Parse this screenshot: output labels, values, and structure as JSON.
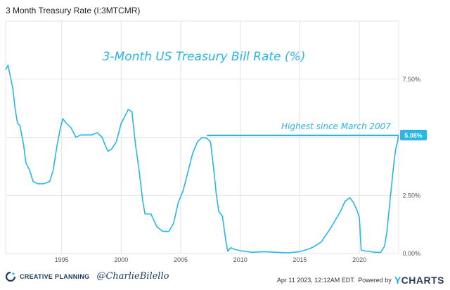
{
  "header": {
    "title": "3 Month Treasury Rate (I:3MTCMR)"
  },
  "footer": {
    "brand": "CREATIVE PLANNING",
    "handle": "@CharlieBilello",
    "timestamp": "Apr 11 2023, 12:12AM EDT.",
    "powered_by": "Powered by",
    "ycharts_y": "Y",
    "ycharts_rest": "CHARTS"
  },
  "colors": {
    "line": "#29b6e6",
    "grid": "#e3e3e3",
    "label_bg": "#29b6e6"
  },
  "chart_data": {
    "type": "line",
    "title": "3-Month US Treasury Bill Rate (%)",
    "xlim": [
      1990.3,
      2023.3
    ],
    "ylim": [
      0,
      10
    ],
    "x_ticks": [
      1995,
      2000,
      2005,
      2010,
      2015,
      2020
    ],
    "x_tick_labels": [
      "1995",
      "2000",
      "2005",
      "2010",
      "2015",
      "2020"
    ],
    "y_ticks": [
      0,
      2.5,
      5,
      7.5
    ],
    "y_tick_labels": [
      "0.00%",
      "2.50%",
      "",
      "7.50%"
    ],
    "annotation": {
      "text": "Highest since March 2007",
      "from_x": 2007.2,
      "to_x": 2023.25,
      "y": 5.08
    },
    "current_value_label": "5.08%",
    "series": [
      {
        "x": [
          1990.3,
          1990.5,
          1990.7,
          1990.9,
          1991.1,
          1991.3,
          1991.5,
          1991.8,
          1992.0,
          1992.3,
          1992.6,
          1993.0,
          1993.5,
          1994.0,
          1994.3,
          1994.6,
          1994.9,
          1995.1,
          1995.4,
          1995.8,
          1996.2,
          1996.6,
          1997.0,
          1997.5,
          1998.0,
          1998.4,
          1998.7,
          1998.9,
          1999.2,
          1999.6,
          2000.0,
          2000.3,
          2000.6,
          2000.9,
          2001.2,
          2001.5,
          2001.8,
          2002.0,
          2002.5,
          2003.0,
          2003.5,
          2004.0,
          2004.4,
          2004.8,
          2005.2,
          2005.6,
          2006.0,
          2006.4,
          2006.8,
          2007.2,
          2007.5,
          2007.8,
          2008.0,
          2008.2,
          2008.5,
          2008.8,
          2008.95,
          2009.2,
          2009.5,
          2010.0,
          2011.0,
          2012.0,
          2013.0,
          2014.0,
          2015.0,
          2015.8,
          2016.2,
          2016.8,
          2017.2,
          2017.6,
          2018.0,
          2018.4,
          2018.8,
          2019.2,
          2019.5,
          2019.8,
          2020.0,
          2020.15,
          2020.3,
          2020.8,
          2021.3,
          2021.8,
          2022.1,
          2022.3,
          2022.5,
          2022.7,
          2022.9,
          2023.05,
          2023.2,
          2023.28
        ],
        "y": [
          7.9,
          8.1,
          7.6,
          7.1,
          6.2,
          5.6,
          5.5,
          4.7,
          3.9,
          3.6,
          3.1,
          3.0,
          3.0,
          3.1,
          3.6,
          4.6,
          5.4,
          5.8,
          5.6,
          5.4,
          5.0,
          5.1,
          5.1,
          5.1,
          5.2,
          5.0,
          4.6,
          4.4,
          4.5,
          4.8,
          5.6,
          5.9,
          6.2,
          6.1,
          4.7,
          3.6,
          2.3,
          1.7,
          1.7,
          1.15,
          0.95,
          0.95,
          1.3,
          2.2,
          2.7,
          3.5,
          4.3,
          4.8,
          5.0,
          4.95,
          4.8,
          3.5,
          2.5,
          1.8,
          1.6,
          0.5,
          0.1,
          0.25,
          0.18,
          0.12,
          0.05,
          0.08,
          0.05,
          0.03,
          0.08,
          0.2,
          0.3,
          0.5,
          0.8,
          1.1,
          1.45,
          1.8,
          2.25,
          2.4,
          2.2,
          1.85,
          1.55,
          0.15,
          0.12,
          0.09,
          0.05,
          0.05,
          0.3,
          0.9,
          1.9,
          2.9,
          3.9,
          4.5,
          4.8,
          5.08
        ]
      }
    ]
  }
}
